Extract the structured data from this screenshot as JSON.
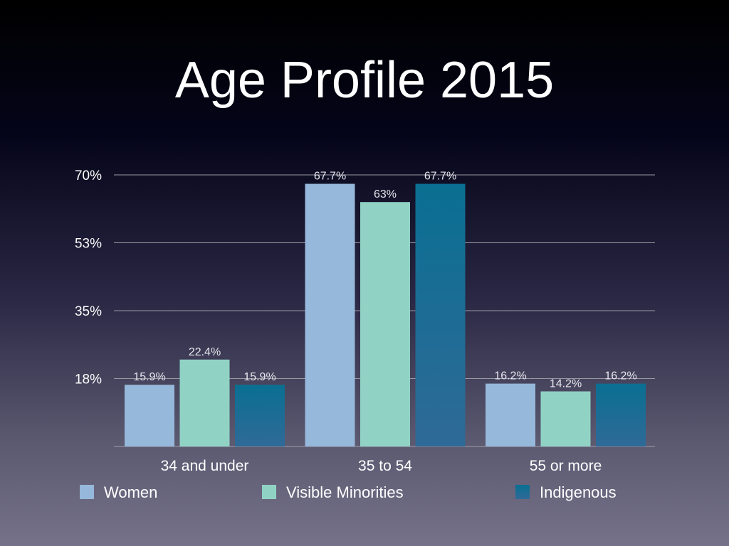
{
  "chart_data": {
    "type": "bar",
    "title": "Age Profile 2015",
    "xlabel": "",
    "ylabel": "",
    "ylim": [
      0,
      70
    ],
    "yticks": [
      17.5,
      35,
      52.5,
      70
    ],
    "ytick_labels": [
      "18%",
      "35%",
      "53%",
      "70%"
    ],
    "grid": true,
    "legend_position": "bottom",
    "categories": [
      "34 and under",
      "35 to 54",
      "55 or more"
    ],
    "series": [
      {
        "name": "Women",
        "values": [
          15.9,
          67.7,
          16.2
        ],
        "labels": [
          "15.9%",
          "67.7%",
          "16.2%"
        ],
        "color": "#96b8da"
      },
      {
        "name": "Visible Minorities",
        "values": [
          22.4,
          63,
          14.2
        ],
        "labels": [
          "22.4%",
          "63%",
          "14.2%"
        ],
        "color": "#90d3c5"
      },
      {
        "name": "Indigenous",
        "values": [
          15.9,
          67.7,
          16.2
        ],
        "labels": [
          "15.9%",
          "67.7%",
          "16.2%"
        ],
        "color": "#0a6f92",
        "color_bottom": "#2f6a98"
      }
    ]
  }
}
